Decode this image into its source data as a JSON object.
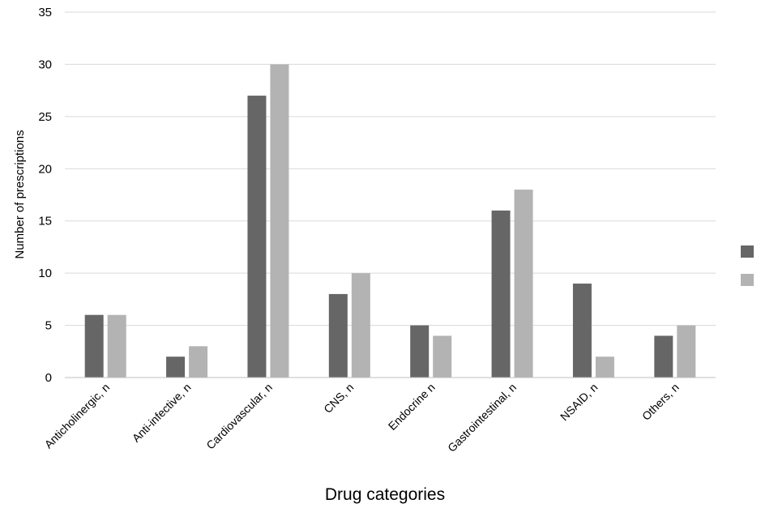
{
  "chart_data": {
    "type": "bar",
    "title": "",
    "xlabel": "Drug categories",
    "ylabel": "Number of prescriptions",
    "ylim": [
      0,
      35
    ],
    "yticks": [
      0,
      5,
      10,
      15,
      20,
      25,
      30,
      35
    ],
    "grid": true,
    "legend": "right",
    "categories": [
      "Anticholinergic, n",
      "Anti-infective, n",
      "Cardiovascular, n",
      "CNS, n",
      "Endocrine n",
      "Gastrointestinal, n",
      "NSAID, n",
      "Others, n"
    ],
    "series": [
      {
        "values": [
          6,
          2,
          27,
          8,
          5,
          16,
          9,
          4
        ],
        "color": "#666666"
      },
      {
        "values": [
          6,
          3,
          30,
          10,
          4,
          18,
          2,
          5
        ],
        "color": "#b3b3b3"
      }
    ],
    "colors": {
      "gridline": "#d9d9d9",
      "axis": "#bfbfbf"
    }
  }
}
